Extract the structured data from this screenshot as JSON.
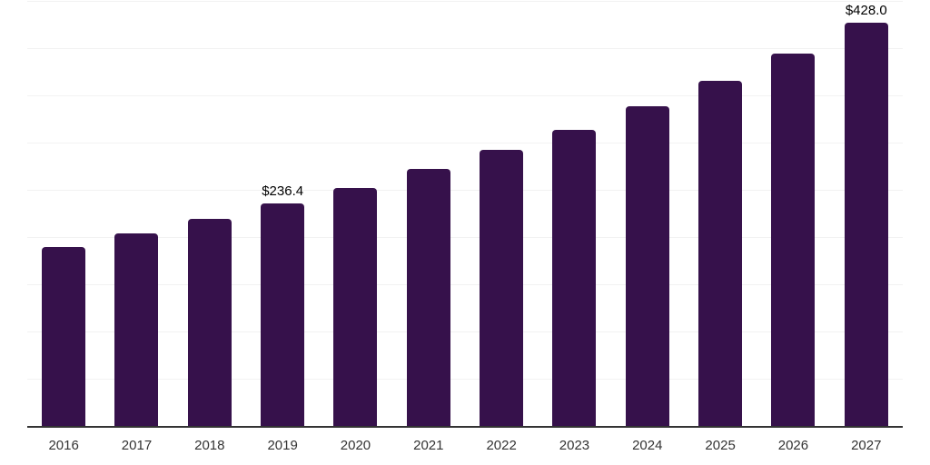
{
  "chart_data": {
    "type": "bar",
    "title": "",
    "categories": [
      "2016",
      "2017",
      "2018",
      "2019",
      "2020",
      "2021",
      "2022",
      "2023",
      "2024",
      "2025",
      "2026",
      "2027"
    ],
    "values": [
      190.4,
      204.7,
      220.1,
      236.4,
      252.7,
      272.7,
      292.9,
      314.9,
      339.8,
      366.7,
      395.4,
      428.0
    ],
    "data_labels": [
      {
        "index": 3,
        "text": "$236.4"
      },
      {
        "index": 11,
        "text": "$428.0"
      }
    ],
    "xlabel": "",
    "ylabel": "",
    "ylim": [
      0,
      450
    ],
    "gridline_interval": 50,
    "grid": "horizontal",
    "legend": "none",
    "y_axis_ticks_visible": false,
    "colors": {
      "bar": "#36114B",
      "gridline": "#f2f2f2",
      "axis": "#333333",
      "tick_label": "#333333",
      "data_label": "#000000",
      "background": "#ffffff"
    }
  }
}
